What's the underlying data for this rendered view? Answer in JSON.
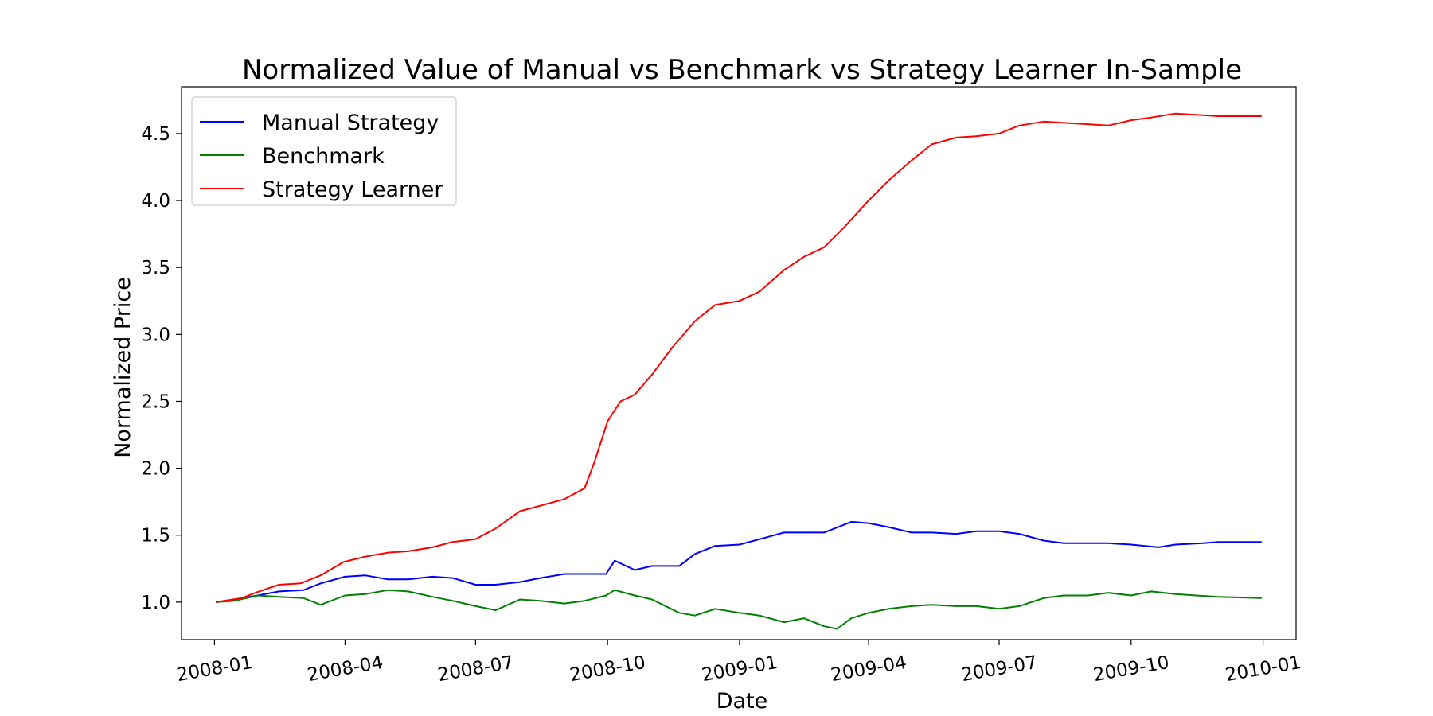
{
  "chart_data": {
    "type": "line",
    "title": "Normalized Value of Manual vs Benchmark vs Strategy Learner In-Sample",
    "xlabel": "Date",
    "ylabel": "Normalized Price",
    "x_ticks": [
      "2008-01",
      "2008-04",
      "2008-07",
      "2008-10",
      "2009-01",
      "2009-04",
      "2009-07",
      "2009-10",
      "2010-01"
    ],
    "y_ticks": [
      "1.0",
      "1.5",
      "2.0",
      "2.5",
      "3.0",
      "3.5",
      "4.0",
      "4.5"
    ],
    "xlim": [
      "2007-12-09",
      "2010-01-24"
    ],
    "ylim": [
      0.72,
      4.85
    ],
    "grid": false,
    "legend_position": "top-left",
    "series": [
      {
        "name": "Manual Strategy",
        "color": "#0000ff",
        "points": [
          [
            "2008-01-02",
            1.0
          ],
          [
            "2008-01-15",
            1.02
          ],
          [
            "2008-01-31",
            1.05
          ],
          [
            "2008-02-15",
            1.08
          ],
          [
            "2008-03-03",
            1.09
          ],
          [
            "2008-03-15",
            1.14
          ],
          [
            "2008-04-01",
            1.19
          ],
          [
            "2008-04-15",
            1.2
          ],
          [
            "2008-05-01",
            1.17
          ],
          [
            "2008-05-15",
            1.17
          ],
          [
            "2008-06-01",
            1.19
          ],
          [
            "2008-06-15",
            1.18
          ],
          [
            "2008-07-01",
            1.13
          ],
          [
            "2008-07-15",
            1.13
          ],
          [
            "2008-08-01",
            1.15
          ],
          [
            "2008-08-15",
            1.18
          ],
          [
            "2008-09-01",
            1.21
          ],
          [
            "2008-09-30",
            1.21
          ],
          [
            "2008-10-06",
            1.31
          ],
          [
            "2008-10-20",
            1.24
          ],
          [
            "2008-11-01",
            1.27
          ],
          [
            "2008-11-20",
            1.27
          ],
          [
            "2008-12-01",
            1.36
          ],
          [
            "2008-12-15",
            1.42
          ],
          [
            "2009-01-01",
            1.43
          ],
          [
            "2009-01-15",
            1.47
          ],
          [
            "2009-02-01",
            1.52
          ],
          [
            "2009-03-01",
            1.52
          ],
          [
            "2009-03-20",
            1.6
          ],
          [
            "2009-04-01",
            1.59
          ],
          [
            "2009-04-15",
            1.56
          ],
          [
            "2009-05-01",
            1.52
          ],
          [
            "2009-05-15",
            1.52
          ],
          [
            "2009-06-01",
            1.51
          ],
          [
            "2009-06-15",
            1.53
          ],
          [
            "2009-07-01",
            1.53
          ],
          [
            "2009-07-15",
            1.51
          ],
          [
            "2009-08-01",
            1.46
          ],
          [
            "2009-08-15",
            1.44
          ],
          [
            "2009-09-01",
            1.44
          ],
          [
            "2009-09-15",
            1.44
          ],
          [
            "2009-10-01",
            1.43
          ],
          [
            "2009-10-20",
            1.41
          ],
          [
            "2009-11-01",
            1.43
          ],
          [
            "2009-11-20",
            1.44
          ],
          [
            "2009-12-01",
            1.45
          ],
          [
            "2009-12-31",
            1.45
          ]
        ]
      },
      {
        "name": "Benchmark",
        "color": "#008000",
        "points": [
          [
            "2008-01-02",
            1.0
          ],
          [
            "2008-01-15",
            1.01
          ],
          [
            "2008-01-31",
            1.05
          ],
          [
            "2008-02-15",
            1.04
          ],
          [
            "2008-03-03",
            1.03
          ],
          [
            "2008-03-15",
            0.98
          ],
          [
            "2008-04-01",
            1.05
          ],
          [
            "2008-04-15",
            1.06
          ],
          [
            "2008-05-01",
            1.09
          ],
          [
            "2008-05-15",
            1.08
          ],
          [
            "2008-06-01",
            1.04
          ],
          [
            "2008-06-15",
            1.01
          ],
          [
            "2008-07-01",
            0.97
          ],
          [
            "2008-07-15",
            0.94
          ],
          [
            "2008-08-01",
            1.02
          ],
          [
            "2008-08-15",
            1.01
          ],
          [
            "2008-09-01",
            0.99
          ],
          [
            "2008-09-15",
            1.01
          ],
          [
            "2008-09-30",
            1.05
          ],
          [
            "2008-10-06",
            1.09
          ],
          [
            "2008-10-20",
            1.05
          ],
          [
            "2008-11-01",
            1.02
          ],
          [
            "2008-11-20",
            0.92
          ],
          [
            "2008-12-01",
            0.9
          ],
          [
            "2008-12-15",
            0.95
          ],
          [
            "2009-01-01",
            0.92
          ],
          [
            "2009-01-15",
            0.9
          ],
          [
            "2009-02-01",
            0.85
          ],
          [
            "2009-02-15",
            0.88
          ],
          [
            "2009-03-01",
            0.82
          ],
          [
            "2009-03-10",
            0.8
          ],
          [
            "2009-03-20",
            0.88
          ],
          [
            "2009-04-01",
            0.92
          ],
          [
            "2009-04-15",
            0.95
          ],
          [
            "2009-05-01",
            0.97
          ],
          [
            "2009-05-15",
            0.98
          ],
          [
            "2009-06-01",
            0.97
          ],
          [
            "2009-06-15",
            0.97
          ],
          [
            "2009-07-01",
            0.95
          ],
          [
            "2009-07-15",
            0.97
          ],
          [
            "2009-08-01",
            1.03
          ],
          [
            "2009-08-15",
            1.05
          ],
          [
            "2009-09-01",
            1.05
          ],
          [
            "2009-09-15",
            1.07
          ],
          [
            "2009-10-01",
            1.05
          ],
          [
            "2009-10-15",
            1.08
          ],
          [
            "2009-11-01",
            1.06
          ],
          [
            "2009-11-15",
            1.05
          ],
          [
            "2009-12-01",
            1.04
          ],
          [
            "2009-12-31",
            1.03
          ]
        ]
      },
      {
        "name": "Strategy Learner",
        "color": "#ff0000",
        "points": [
          [
            "2008-01-02",
            1.0
          ],
          [
            "2008-01-20",
            1.03
          ],
          [
            "2008-02-01",
            1.08
          ],
          [
            "2008-02-15",
            1.13
          ],
          [
            "2008-03-01",
            1.14
          ],
          [
            "2008-03-15",
            1.2
          ],
          [
            "2008-03-31",
            1.3
          ],
          [
            "2008-04-15",
            1.34
          ],
          [
            "2008-05-01",
            1.37
          ],
          [
            "2008-05-15",
            1.38
          ],
          [
            "2008-06-01",
            1.41
          ],
          [
            "2008-06-15",
            1.45
          ],
          [
            "2008-07-01",
            1.47
          ],
          [
            "2008-07-15",
            1.55
          ],
          [
            "2008-08-01",
            1.68
          ],
          [
            "2008-08-15",
            1.72
          ],
          [
            "2008-09-01",
            1.77
          ],
          [
            "2008-09-15",
            1.85
          ],
          [
            "2008-09-22",
            2.05
          ],
          [
            "2008-10-01",
            2.35
          ],
          [
            "2008-10-10",
            2.5
          ],
          [
            "2008-10-20",
            2.55
          ],
          [
            "2008-11-01",
            2.7
          ],
          [
            "2008-11-15",
            2.9
          ],
          [
            "2008-12-01",
            3.1
          ],
          [
            "2008-12-15",
            3.22
          ],
          [
            "2009-01-01",
            3.25
          ],
          [
            "2009-01-15",
            3.32
          ],
          [
            "2009-02-01",
            3.48
          ],
          [
            "2009-02-15",
            3.58
          ],
          [
            "2009-03-01",
            3.65
          ],
          [
            "2009-03-15",
            3.8
          ],
          [
            "2009-04-01",
            4.0
          ],
          [
            "2009-04-15",
            4.15
          ],
          [
            "2009-05-01",
            4.3
          ],
          [
            "2009-05-15",
            4.42
          ],
          [
            "2009-06-01",
            4.47
          ],
          [
            "2009-06-15",
            4.48
          ],
          [
            "2009-07-01",
            4.5
          ],
          [
            "2009-07-15",
            4.56
          ],
          [
            "2009-08-01",
            4.59
          ],
          [
            "2009-08-15",
            4.58
          ],
          [
            "2009-09-01",
            4.57
          ],
          [
            "2009-09-15",
            4.56
          ],
          [
            "2009-10-01",
            4.6
          ],
          [
            "2009-10-15",
            4.62
          ],
          [
            "2009-11-01",
            4.65
          ],
          [
            "2009-11-15",
            4.64
          ],
          [
            "2009-12-01",
            4.63
          ],
          [
            "2009-12-31",
            4.63
          ]
        ]
      }
    ]
  }
}
